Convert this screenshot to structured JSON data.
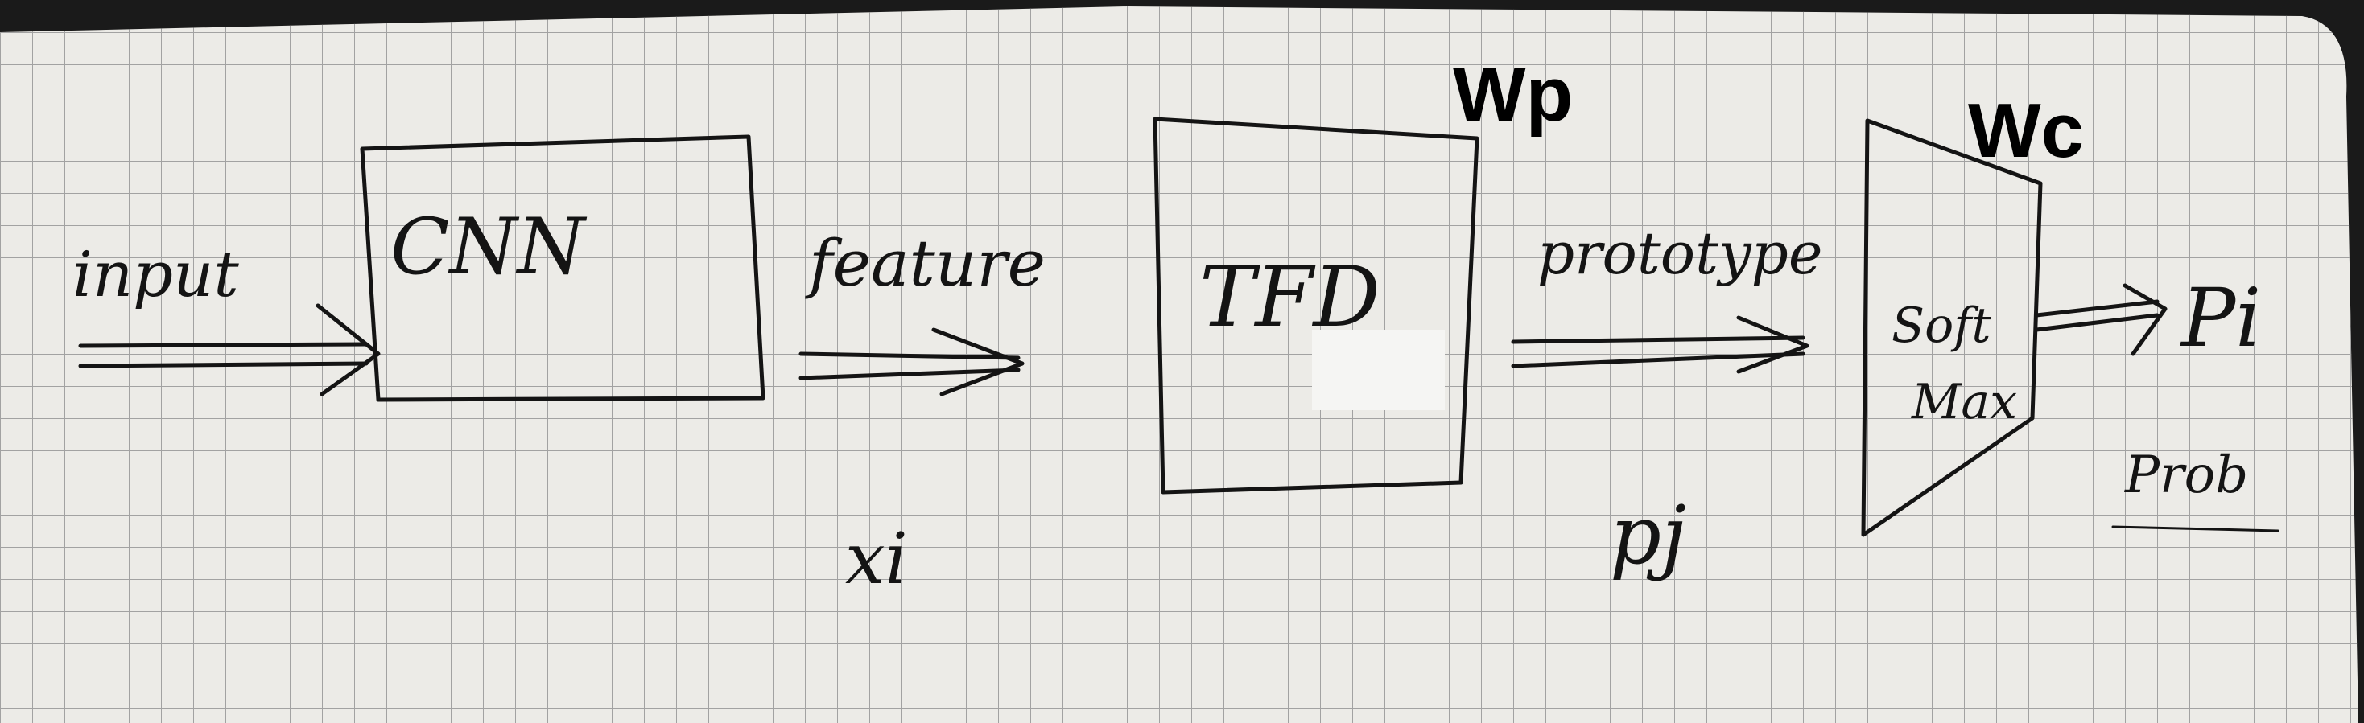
{
  "colors": {
    "paper": "#ecebe7",
    "grid": "#9a9a9a",
    "ink": "#141414",
    "background": "#1a1a1a"
  },
  "diagram": {
    "nodes": [
      {
        "id": "cnn",
        "label": "CNN"
      },
      {
        "id": "tfd",
        "label": "TFD",
        "weight_label": "Wp"
      },
      {
        "id": "softmax",
        "label_line1": "Soft",
        "label_line2": "Max",
        "weight_label": "Wc"
      }
    ],
    "edges": [
      {
        "id": "input",
        "label": "input"
      },
      {
        "id": "feature",
        "label": "feature",
        "symbol": "xi"
      },
      {
        "id": "prototype",
        "label": "prototype",
        "symbol": "pj"
      },
      {
        "id": "output",
        "symbol": "Pi",
        "label": "Prob"
      }
    ]
  }
}
